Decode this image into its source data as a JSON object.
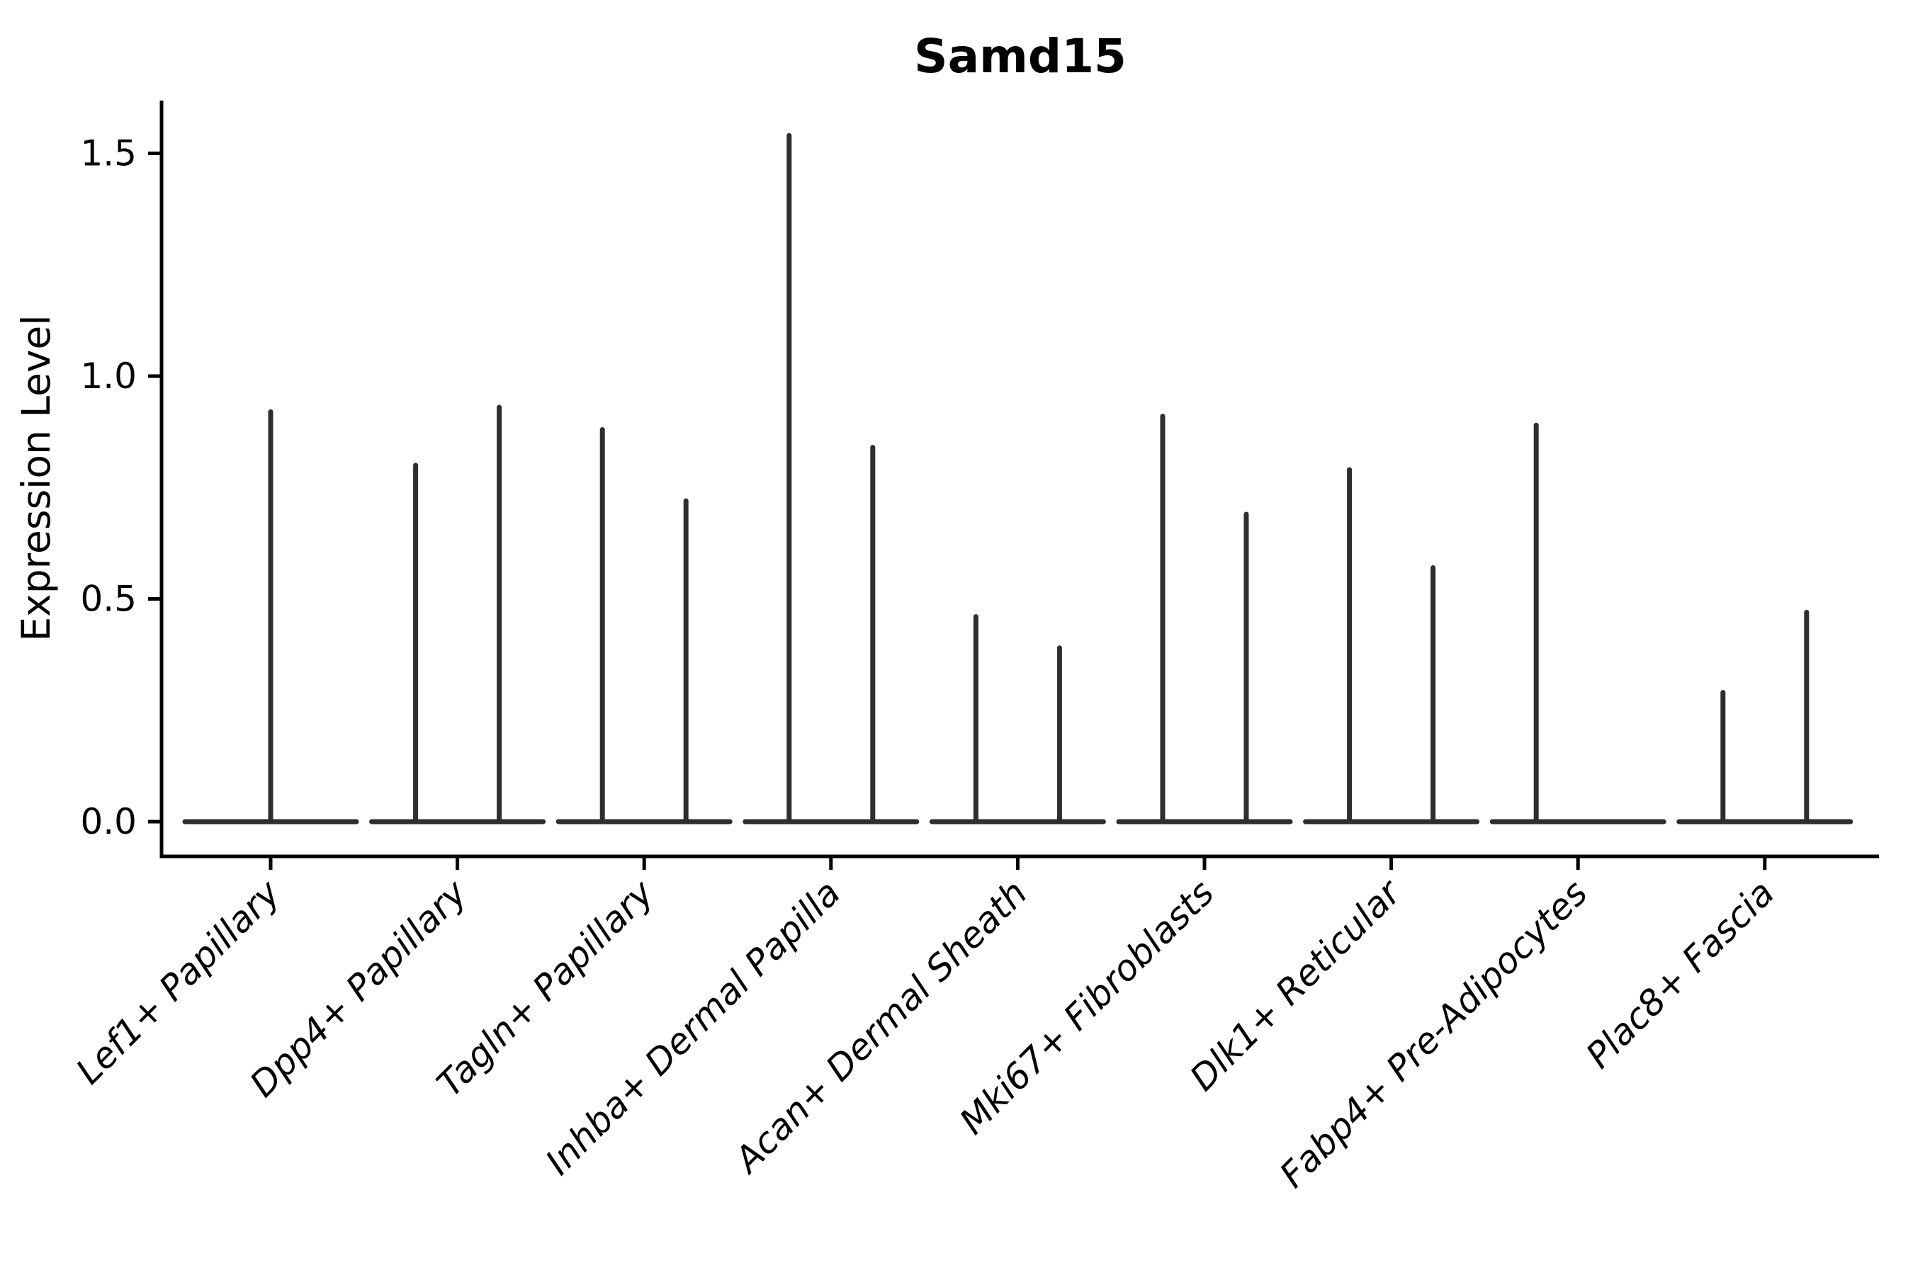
{
  "title": "Samd15",
  "ylabel": "Expression Level",
  "colors": {
    "axis": "#000000",
    "violin_line": "#2e2e2e",
    "background": "#ffffff",
    "text": "#000000"
  },
  "chart_data": {
    "type": "violin",
    "title": "Samd15",
    "xlabel": "",
    "ylabel": "Expression Level",
    "grid": false,
    "legend": null,
    "ylim": [
      -0.08,
      1.62
    ],
    "yticks": [
      0.0,
      0.5,
      1.0,
      1.5
    ],
    "ytick_labels": [
      "0.0",
      "0.5",
      "1.0",
      "1.5"
    ],
    "baseline_value": 0.0,
    "categories": [
      "Lef1+ Papillary",
      "Dpp4+ Papillary",
      "Tagln+ Papillary",
      "Inhba+ Dermal Papilla",
      "Acan+ Dermal Sheath",
      "Mki67+ Fibroblasts",
      "Dlk1+ Reticular",
      "Fabp4+ Pre-Adipocytes",
      "Plac8+ Fascia"
    ],
    "violins": [
      {
        "category": "Lef1+ Papillary",
        "spikes": [
          {
            "position": "center",
            "max": 0.92
          }
        ]
      },
      {
        "category": "Dpp4+ Papillary",
        "spikes": [
          {
            "position": "left",
            "max": 0.8
          },
          {
            "position": "right",
            "max": 0.93
          }
        ]
      },
      {
        "category": "Tagln+ Papillary",
        "spikes": [
          {
            "position": "left",
            "max": 0.88
          },
          {
            "position": "right",
            "max": 0.72
          }
        ]
      },
      {
        "category": "Inhba+ Dermal Papilla",
        "spikes": [
          {
            "position": "left",
            "max": 1.54
          },
          {
            "position": "right",
            "max": 0.84
          }
        ]
      },
      {
        "category": "Acan+ Dermal Sheath",
        "spikes": [
          {
            "position": "left",
            "max": 0.46
          },
          {
            "position": "right",
            "max": 0.39
          }
        ]
      },
      {
        "category": "Mki67+ Fibroblasts",
        "spikes": [
          {
            "position": "left",
            "max": 0.91
          },
          {
            "position": "right",
            "max": 0.69
          }
        ]
      },
      {
        "category": "Dlk1+ Reticular",
        "spikes": [
          {
            "position": "left",
            "max": 0.79
          },
          {
            "position": "right",
            "max": 0.57
          }
        ]
      },
      {
        "category": "Fabp4+ Pre-Adipocytes",
        "spikes": [
          {
            "position": "left",
            "max": 0.89
          }
        ]
      },
      {
        "category": "Plac8+ Fascia",
        "spikes": [
          {
            "position": "left",
            "max": 0.29
          },
          {
            "position": "right",
            "max": 0.47
          }
        ]
      }
    ]
  }
}
